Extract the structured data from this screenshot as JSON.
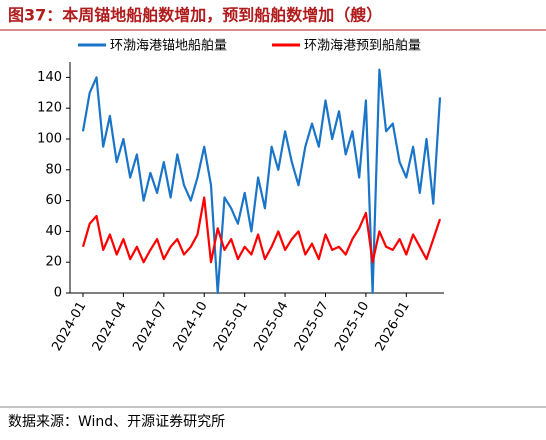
{
  "chart_data": {
    "type": "line",
    "title": "图37：本周锚地船舶数增加，预到船舶数增加（艘）",
    "source": "数据来源：Wind、开源证券研究所",
    "categories": [
      "2024-01",
      null,
      null,
      null,
      null,
      null,
      "2024-04",
      null,
      null,
      null,
      null,
      null,
      "2024-07",
      null,
      null,
      null,
      null,
      null,
      "2024-10",
      null,
      null,
      null,
      null,
      null,
      "2025-01",
      null,
      null,
      null,
      null,
      null,
      "2025-04",
      null,
      null,
      null,
      null,
      null,
      "2025-07",
      null,
      null,
      null,
      null,
      null,
      "2025-10",
      null,
      null,
      null,
      null,
      null,
      "2026-01",
      null,
      null,
      null,
      null,
      null
    ],
    "series": [
      {
        "name": "环渤海港锚地船舶量",
        "color": "#1a75c8",
        "values": [
          105,
          130,
          140,
          95,
          115,
          85,
          100,
          75,
          90,
          60,
          78,
          65,
          85,
          62,
          90,
          70,
          60,
          75,
          95,
          70,
          0,
          62,
          55,
          45,
          65,
          40,
          75,
          55,
          95,
          80,
          105,
          85,
          70,
          95,
          110,
          95,
          125,
          100,
          118,
          90,
          105,
          75,
          125,
          0,
          145,
          105,
          110,
          85,
          75,
          95,
          65,
          100,
          58,
          127
        ]
      },
      {
        "name": "环渤海港预到船舶量",
        "color": "#ff0000",
        "values": [
          30,
          45,
          50,
          28,
          38,
          25,
          35,
          22,
          30,
          20,
          28,
          35,
          22,
          30,
          35,
          25,
          30,
          38,
          62,
          20,
          42,
          28,
          35,
          22,
          30,
          25,
          38,
          22,
          30,
          40,
          28,
          35,
          40,
          25,
          32,
          22,
          38,
          28,
          30,
          25,
          35,
          42,
          52,
          20,
          40,
          30,
          28,
          35,
          25,
          38,
          30,
          22,
          35,
          48
        ]
      }
    ],
    "ylim": [
      0,
      150
    ],
    "yticks": [
      0,
      20,
      40,
      60,
      80,
      100,
      120,
      140
    ],
    "grid": false
  }
}
